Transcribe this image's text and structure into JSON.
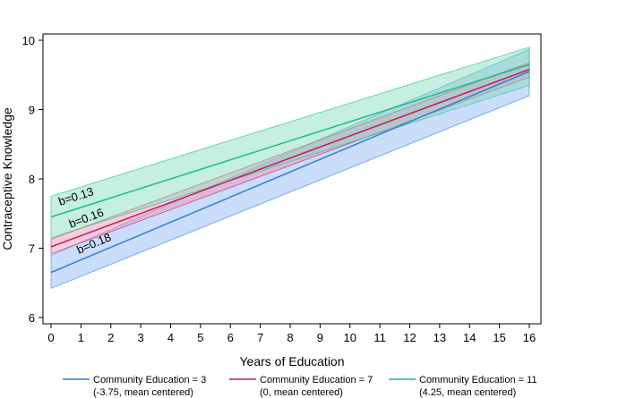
{
  "chart_data": {
    "type": "line",
    "title": "",
    "xlabel": "Years of Education",
    "ylabel": "Contraceptive Knowledge",
    "xlim": [
      0,
      16
    ],
    "ylim": [
      6,
      10
    ],
    "xticks": [
      0,
      1,
      2,
      3,
      4,
      5,
      6,
      7,
      8,
      9,
      10,
      11,
      12,
      13,
      14,
      15,
      16
    ],
    "yticks": [
      6,
      7,
      8,
      9,
      10
    ],
    "series": [
      {
        "name": "Community Education = 3",
        "note": "(-3.75, mean centered)",
        "color": "#2f7fd8",
        "band_color": "#8ab4f5",
        "x": [
          0,
          16
        ],
        "y": [
          6.65,
          9.55
        ],
        "ci_lower": [
          6.42,
          9.2
        ],
        "ci_upper": [
          6.9,
          9.87
        ]
      },
      {
        "name": "Community Education = 7",
        "note": "(0, mean centered)",
        "color": "#c2185b",
        "band_color": "#f48fb1",
        "x": [
          0,
          16
        ],
        "y": [
          7.02,
          9.58
        ],
        "ci_lower": [
          6.92,
          9.47
        ],
        "ci_upper": [
          7.13,
          9.68
        ]
      },
      {
        "name": "Community Education = 11",
        "note": "(4.25, mean centered)",
        "color": "#1abc8c",
        "band_color": "#7fdcb9",
        "x": [
          0,
          16
        ],
        "y": [
          7.45,
          9.65
        ],
        "ci_lower": [
          7.15,
          9.35
        ],
        "ci_upper": [
          7.75,
          9.9
        ]
      }
    ],
    "annotations": [
      {
        "text": "b=0.13",
        "series": "Community Education = 11"
      },
      {
        "text": "b=0.16",
        "series": "Community Education = 7"
      },
      {
        "text": "b=0.18",
        "series": "Community Education = 3"
      }
    ],
    "legend_position": "bottom",
    "grid": false
  }
}
